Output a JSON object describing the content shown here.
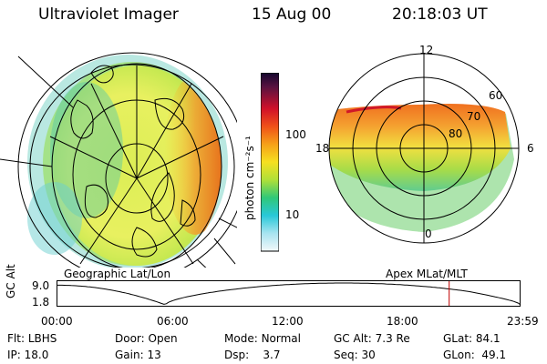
{
  "header": {
    "instrument": "Ultraviolet Imager",
    "date": "15 Aug 00",
    "time": "20:18:03 UT"
  },
  "colorbar": {
    "units_label": "photon cm⁻²s⁻¹",
    "tick_labels": [
      "100",
      "10"
    ]
  },
  "maps": {
    "left_label": "Geographic Lat/Lon",
    "right_label": "Apex MLat/MLT"
  },
  "polar": {
    "mlt_labels": {
      "top": "12",
      "left": "18",
      "right": "6",
      "bottom": "0"
    },
    "lat_labels": [
      "60",
      "70",
      "80"
    ]
  },
  "altitude_plot": {
    "ylabel": "GC Alt",
    "ytick_labels": [
      "9.0",
      "1.8"
    ],
    "xtick_labels": [
      "00:00",
      "06:00",
      "12:00",
      "18:00",
      "23:59"
    ],
    "marker_time_hours": 20.3
  },
  "info": {
    "row1": [
      {
        "label": "Flt:",
        "value": "LBHS"
      },
      {
        "label": "Door:",
        "value": "Open"
      },
      {
        "label": "Mode:",
        "value": "Normal"
      },
      {
        "label": "GC Alt:",
        "value": "7.3 Re"
      },
      {
        "label": "GLat:",
        "value": "84.1"
      }
    ],
    "row2": [
      {
        "label": "IP:",
        "value": "18.0"
      },
      {
        "label": "Gain:",
        "value": "13"
      },
      {
        "label": "Dsp:",
        "value": "3.7"
      },
      {
        "label": "Seq:",
        "value": "30"
      },
      {
        "label": "GLon:",
        "value": "49.1"
      }
    ]
  }
}
